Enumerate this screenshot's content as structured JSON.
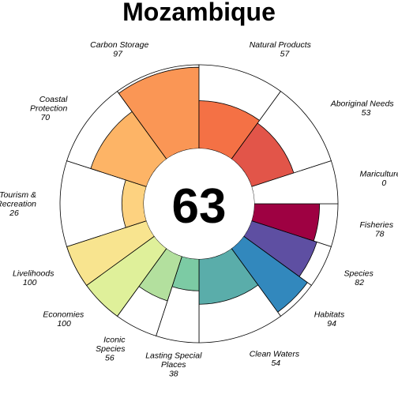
{
  "chart_data": {
    "type": "flower",
    "title": "Mozambique",
    "center_value": "63",
    "value_max": 100,
    "petals": [
      {
        "label": [
          "Fisheries"
        ],
        "value_text": "78",
        "value": 78,
        "color": "#9e0142",
        "weight": 1
      },
      {
        "label": [
          "Species"
        ],
        "value_text": "82",
        "value": 82,
        "color": "#5e4fa2",
        "weight": 1
      },
      {
        "label": [
          "Habitats"
        ],
        "value_text": "94",
        "value": 94,
        "color": "#3288bd",
        "weight": 1
      },
      {
        "label": [
          "Clean Waters"
        ],
        "value_text": "54",
        "value": 54,
        "color": "#5aadaa",
        "weight": 2
      },
      {
        "label": [
          "Lasting Special",
          "Places"
        ],
        "value_text": "38",
        "value": 38,
        "color": "#7ccba4",
        "weight": 1
      },
      {
        "label": [
          "Iconic",
          "Species"
        ],
        "value_text": "56",
        "value": 56,
        "color": "#b3e09e",
        "weight": 1
      },
      {
        "label": [
          "Economies"
        ],
        "value_text": "100",
        "value": 100,
        "color": "#dff09a",
        "weight": 1
      },
      {
        "label": [
          "Livelihoods"
        ],
        "value_text": "100",
        "value": 100,
        "color": "#f8e48f",
        "weight": 1
      },
      {
        "label": [
          "Tourism &",
          "Recreation"
        ],
        "value_text": "26",
        "value": 26,
        "color": "#fdd280",
        "weight": 2
      },
      {
        "label": [
          "Coastal",
          "Protection"
        ],
        "value_text": "70",
        "value": 70,
        "color": "#fdb466",
        "weight": 2
      },
      {
        "label": [
          "Carbon Storage"
        ],
        "value_text": "97",
        "value": 97,
        "color": "#fa9655",
        "weight": 2
      },
      {
        "label": [
          "Natural Products"
        ],
        "value_text": "57",
        "value": 57,
        "color": "#f47145",
        "weight": 2
      },
      {
        "label": [
          "Aboriginal Needs"
        ],
        "value_text": "53",
        "value": 53,
        "color": "#e25549",
        "weight": 2
      },
      {
        "label": [
          "Mariculture"
        ],
        "value_text": "0",
        "value": 0,
        "color": "#d53e4f",
        "weight": 1
      }
    ]
  }
}
